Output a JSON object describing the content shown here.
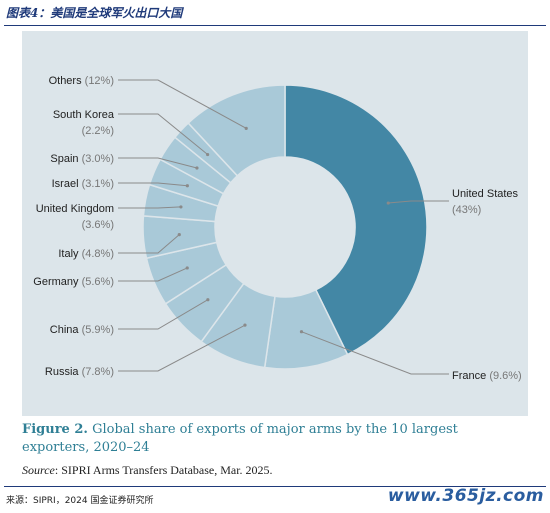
{
  "header": {
    "title": "图表4：美国是全球军火出口大国"
  },
  "chart_data": {
    "type": "pie",
    "donut": true,
    "slices": [
      {
        "label": "United States",
        "value": 43,
        "pct_text": "(43%)",
        "color": "#4387a5"
      },
      {
        "label": "France",
        "value": 9.6,
        "pct_text": "(9.6%)",
        "color": "#a9c9d8"
      },
      {
        "label": "Russia",
        "value": 7.8,
        "pct_text": "(7.8%)",
        "color": "#a9c9d8"
      },
      {
        "label": "China",
        "value": 5.9,
        "pct_text": "(5.9%)",
        "color": "#a9c9d8"
      },
      {
        "label": "Germany",
        "value": 5.6,
        "pct_text": "(5.6%)",
        "color": "#a9c9d8"
      },
      {
        "label": "Italy",
        "value": 4.8,
        "pct_text": "(4.8%)",
        "color": "#a9c9d8"
      },
      {
        "label": "United Kingdom",
        "value": 3.6,
        "pct_text": "(3.6%)",
        "color": "#a9c9d8"
      },
      {
        "label": "Israel",
        "value": 3.1,
        "pct_text": "(3.1%)",
        "color": "#a9c9d8"
      },
      {
        "label": "Spain",
        "value": 3.0,
        "pct_text": "(3.0%)",
        "color": "#a9c9d8"
      },
      {
        "label": "South Korea",
        "value": 2.2,
        "pct_text": "(2.2%)",
        "color": "#a9c9d8"
      },
      {
        "label": "Others",
        "value": 12,
        "pct_text": "(12%)",
        "color": "#a9c9d8"
      }
    ],
    "title": "",
    "legend": "none"
  },
  "caption": {
    "label": "Figure 2.",
    "text": "Global share of exports of major arms by the 10 largest exporters, 2020–24"
  },
  "source_note": {
    "label": "Source",
    "text": ": SIPRI Arms Transfers Database, Mar. 2025."
  },
  "footer": {
    "source": "来源：SIPRI，2024 国金证券研究所",
    "watermark": "www.365jz.com"
  },
  "colors": {
    "panel_bg": "#dce5ea",
    "highlight": "#4387a5",
    "other": "#a9c9d8",
    "caption": "#2f7f95",
    "header": "#1f3a7a"
  }
}
